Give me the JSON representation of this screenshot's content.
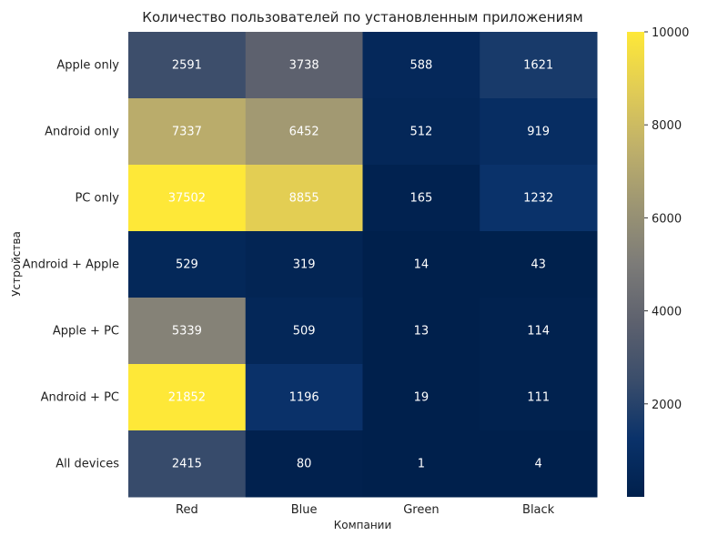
{
  "chart_data": {
    "type": "heatmap",
    "title": "Количество пользователей по установленным приложениям",
    "xlabel": "Компании",
    "ylabel": "Устройства",
    "columns": [
      "Red",
      "Blue",
      "Green",
      "Black"
    ],
    "rows": [
      "Apple only",
      "Android only",
      "PC only",
      "Android + Apple",
      "Apple + PC",
      "Android + PC",
      "All devices"
    ],
    "values": [
      [
        2591,
        3738,
        588,
        1621
      ],
      [
        7337,
        6452,
        512,
        919
      ],
      [
        37502,
        8855,
        165,
        1232
      ],
      [
        529,
        319,
        14,
        43
      ],
      [
        5339,
        509,
        13,
        114
      ],
      [
        21852,
        1196,
        19,
        111
      ],
      [
        2415,
        80,
        1,
        4
      ]
    ],
    "colormap": "cividis",
    "color_range": [
      0,
      10000
    ],
    "colorbar_ticks": [
      2000,
      4000,
      6000,
      8000,
      10000
    ],
    "annotation_color": "#ffffff"
  }
}
